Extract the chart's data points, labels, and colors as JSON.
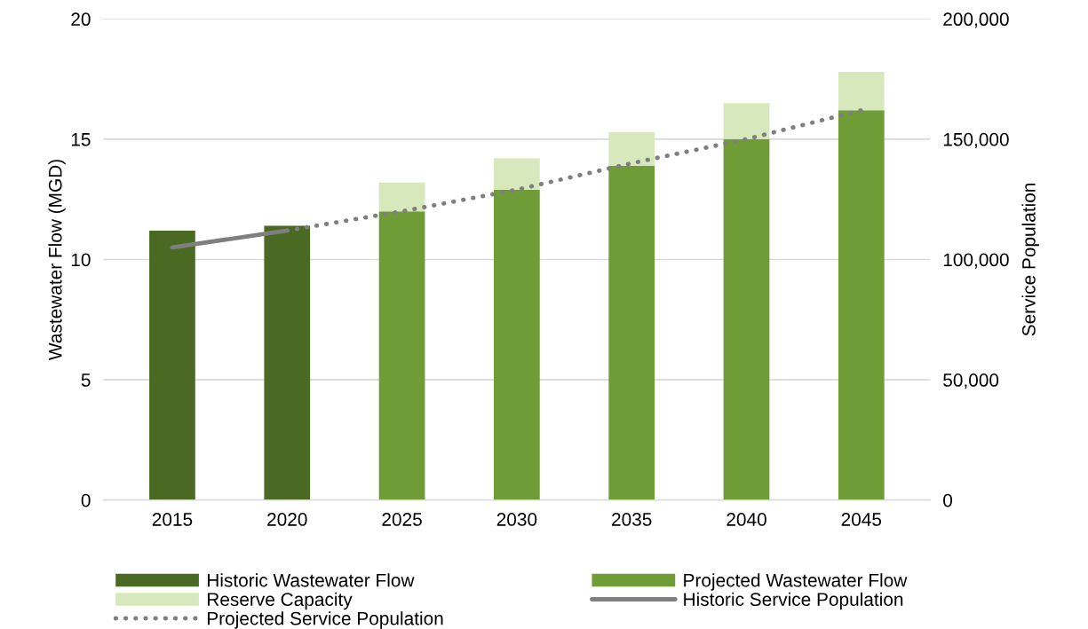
{
  "chart_data": {
    "type": "bar",
    "stacked": true,
    "categories": [
      "2015",
      "2020",
      "2025",
      "2030",
      "2035",
      "2040",
      "2045"
    ],
    "ylabel": "Wastewater Flow (MGD)",
    "y2label": "Service Population",
    "ylim": [
      0,
      20
    ],
    "yticks": [
      0,
      5,
      10,
      15,
      20
    ],
    "y2lim": [
      0,
      200000
    ],
    "y2ticks": [
      {
        "value": 0,
        "label": "0"
      },
      {
        "value": 50000,
        "label": "50,000"
      },
      {
        "value": 100000,
        "label": "100,000"
      },
      {
        "value": 150000,
        "label": "150,000"
      },
      {
        "value": 200000,
        "label": "200,000"
      }
    ],
    "grid": "y",
    "legend": "bottom",
    "series": [
      {
        "name": "Historic Wastewater Flow",
        "color": "#4a6a24",
        "values": [
          11.2,
          11.4,
          null,
          null,
          null,
          null,
          null
        ]
      },
      {
        "name": "Projected Wastewater Flow",
        "color": "#6f9c36",
        "values": [
          null,
          null,
          12.0,
          12.9,
          13.9,
          15.0,
          16.2
        ]
      },
      {
        "name": "Reserve Capacity",
        "color": "#d7e8bd",
        "values": [
          null,
          null,
          1.2,
          1.3,
          1.4,
          1.5,
          1.6
        ]
      },
      {
        "name": "Historic Service Population",
        "type": "line",
        "axis": "y2",
        "color": "#7f7f7f",
        "line_style": "solid",
        "values": [
          105000,
          112000,
          null,
          null,
          null,
          null,
          null
        ]
      },
      {
        "name": "Projected Service Population",
        "type": "line",
        "axis": "y2",
        "color": "#7f7f7f",
        "line_style": "dotted",
        "values": [
          null,
          112000,
          120000,
          129000,
          140000,
          150000,
          162000
        ]
      }
    ]
  }
}
